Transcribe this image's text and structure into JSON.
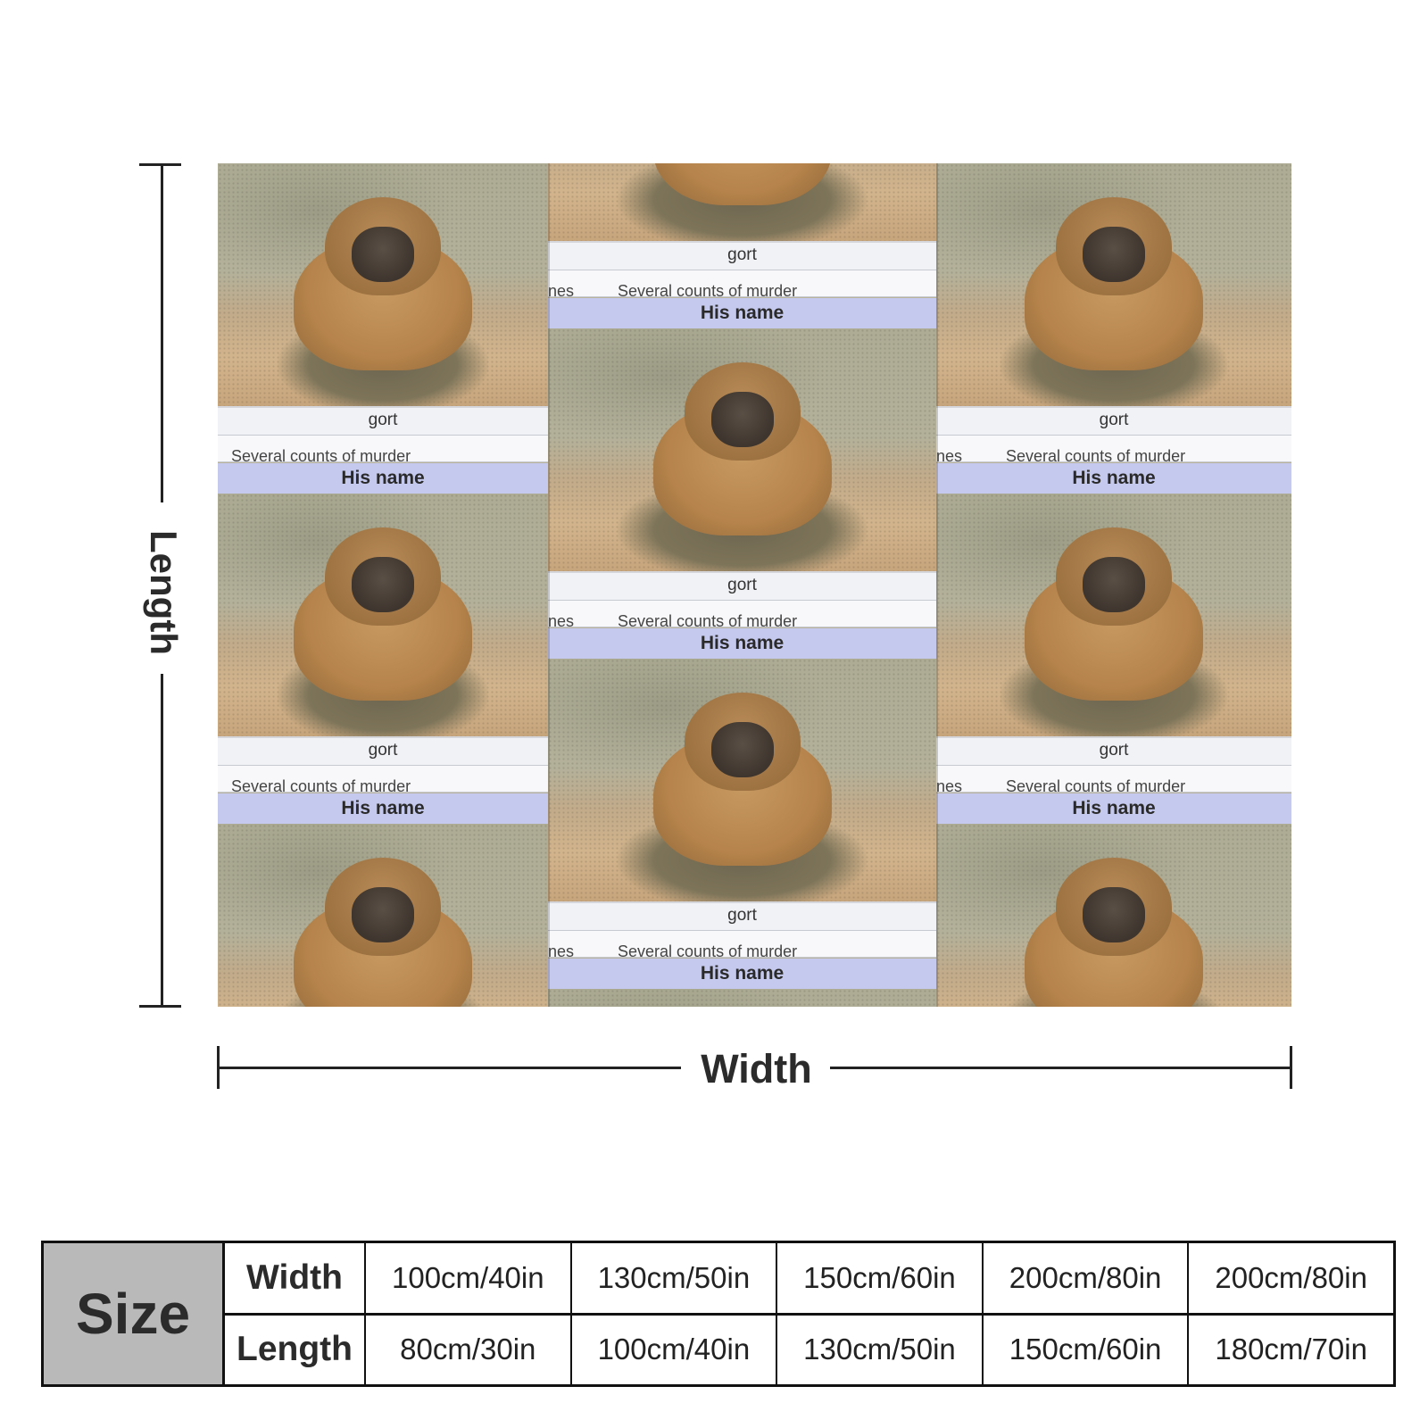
{
  "labels": {
    "length": "Length",
    "width": "Width"
  },
  "tile_text": {
    "name": "gort",
    "crime": "Several counts of murder",
    "fragment": "nes",
    "header": "His name"
  },
  "size_table": {
    "title": "Size",
    "rows": [
      {
        "label": "Width",
        "values": [
          "100cm/40in",
          "130cm/50in",
          "150cm/60in",
          "200cm/80in",
          "200cm/80in"
        ]
      },
      {
        "label": "Length",
        "values": [
          "80cm/30in",
          "100cm/40in",
          "130cm/50in",
          "150cm/60in",
          "180cm/70in"
        ]
      }
    ]
  }
}
